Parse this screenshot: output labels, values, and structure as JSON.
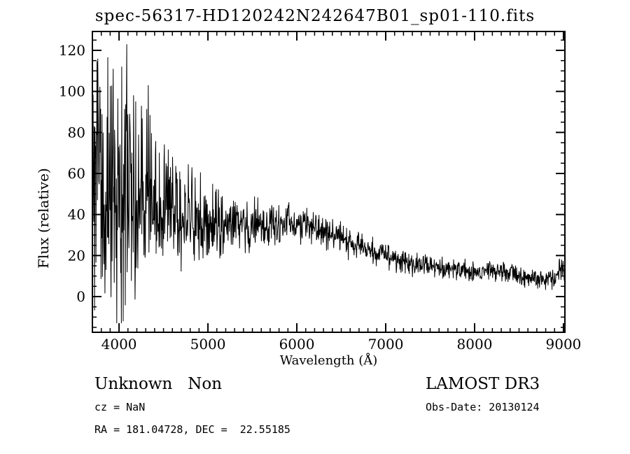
{
  "title": "spec-56317-HD120242N242647B01_sp01-110.fits",
  "axes": {
    "xlabel": "Wavelength (Å)",
    "ylabel": "Flux (relative)",
    "x_ticks": [
      4000,
      5000,
      6000,
      7000,
      8000,
      9000
    ],
    "y_ticks": [
      0,
      20,
      40,
      60,
      80,
      100,
      120
    ],
    "x_minor_step": 100,
    "y_minor_step": 5,
    "x_domain": [
      3700,
      9016
    ],
    "y_domain": [
      -17.4,
      129.2
    ]
  },
  "annotations": {
    "class_label": "Unknown   Non",
    "survey": "LAMOST DR3",
    "cz": "cz = NaN",
    "obs_date": "Obs-Date: 20130124",
    "radec": "RA = 181.04728, DEC =  22.55185"
  },
  "colors": {
    "line": "#000000",
    "axis": "#000000",
    "background": "#ffffff"
  },
  "chart_data": {
    "type": "line",
    "title": "spec-56317-HD120242N242647B01_sp01-110.fits",
    "xlabel": "Wavelength (Å)",
    "ylabel": "Flux (relative)",
    "x_range": [
      3700,
      9016
    ],
    "y_tick_range": [
      0,
      120
    ],
    "grid": false,
    "legend": false,
    "series_name": "flux",
    "samples": 1320,
    "seed": 20130124,
    "continuum": [
      [
        3700,
        55
      ],
      [
        3800,
        52
      ],
      [
        3900,
        55
      ],
      [
        4000,
        52
      ],
      [
        4100,
        55
      ],
      [
        4200,
        50
      ],
      [
        4300,
        50
      ],
      [
        4400,
        48
      ],
      [
        4500,
        46
      ],
      [
        4600,
        42
      ],
      [
        4700,
        40
      ],
      [
        4800,
        40
      ],
      [
        4900,
        38
      ],
      [
        5000,
        38
      ],
      [
        5100,
        36
      ],
      [
        5200,
        34
      ],
      [
        5300,
        35
      ],
      [
        5400,
        36
      ],
      [
        5500,
        35
      ],
      [
        5600,
        36
      ],
      [
        5700,
        35
      ],
      [
        5800,
        34
      ],
      [
        5900,
        36
      ],
      [
        6000,
        36
      ],
      [
        6100,
        35
      ],
      [
        6200,
        34
      ],
      [
        6300,
        32
      ],
      [
        6400,
        30
      ],
      [
        6500,
        28
      ],
      [
        6600,
        26
      ],
      [
        6700,
        24
      ],
      [
        6800,
        22
      ],
      [
        6900,
        21
      ],
      [
        7000,
        20
      ],
      [
        7100,
        18
      ],
      [
        7200,
        17
      ],
      [
        7300,
        16
      ],
      [
        7400,
        16
      ],
      [
        7500,
        15
      ],
      [
        7600,
        14
      ],
      [
        7700,
        14
      ],
      [
        7800,
        13
      ],
      [
        7900,
        13
      ],
      [
        8000,
        12
      ],
      [
        8100,
        13
      ],
      [
        8200,
        12
      ],
      [
        8300,
        12
      ],
      [
        8400,
        11
      ],
      [
        8500,
        10
      ],
      [
        8600,
        9
      ],
      [
        8700,
        9
      ],
      [
        8800,
        8
      ],
      [
        8900,
        9
      ],
      [
        8950,
        12
      ],
      [
        9000,
        14
      ],
      [
        9016,
        8
      ]
    ],
    "noise_sigma": [
      [
        3700,
        40
      ],
      [
        3900,
        38
      ],
      [
        4000,
        42
      ],
      [
        4100,
        40
      ],
      [
        4200,
        30
      ],
      [
        4400,
        22
      ],
      [
        4600,
        16
      ],
      [
        4800,
        13
      ],
      [
        5000,
        11
      ],
      [
        5200,
        9
      ],
      [
        5400,
        8
      ],
      [
        5600,
        8
      ],
      [
        5800,
        7
      ],
      [
        6000,
        6
      ],
      [
        6200,
        5
      ],
      [
        6400,
        5
      ],
      [
        6600,
        4.5
      ],
      [
        6800,
        4
      ],
      [
        7000,
        4
      ],
      [
        7200,
        3.5
      ],
      [
        7400,
        3.5
      ],
      [
        7600,
        3
      ],
      [
        7800,
        3
      ],
      [
        8000,
        3
      ],
      [
        8200,
        3
      ],
      [
        8400,
        3
      ],
      [
        8600,
        3
      ],
      [
        8800,
        3
      ],
      [
        9000,
        3.5
      ]
    ],
    "notable_features": [
      [
        4085,
        123
      ],
      [
        4047,
        -12
      ],
      [
        3760,
        116
      ],
      [
        3935,
        111
      ],
      [
        4330,
        103
      ]
    ],
    "clip": [
      -13,
      124
    ]
  }
}
